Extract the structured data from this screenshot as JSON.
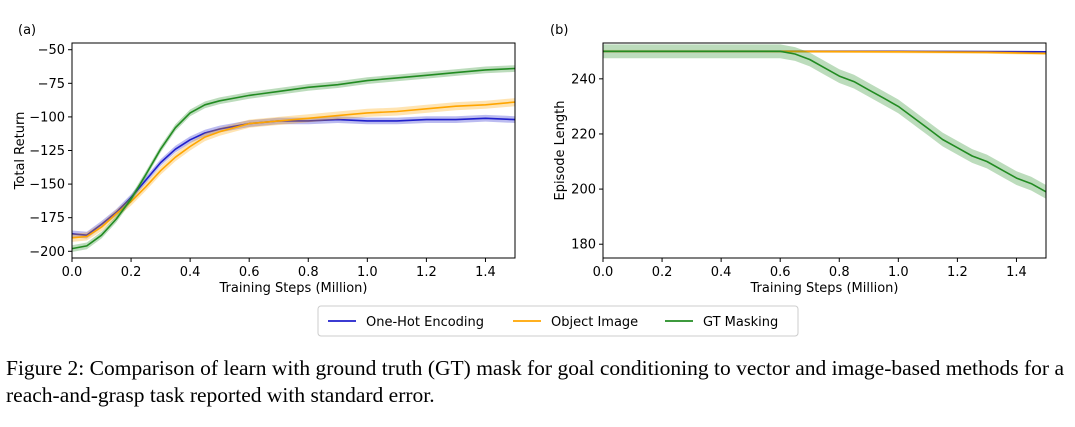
{
  "chart_data": [
    {
      "panel_label": "(a)",
      "type": "line",
      "xlabel": "Training Steps (Million)",
      "ylabel": "Total Return",
      "xlim": [
        0,
        1.5
      ],
      "ylim": [
        -205,
        -45
      ],
      "xticks": [
        0.0,
        0.2,
        0.4,
        0.6,
        0.8,
        1.0,
        1.2,
        1.4
      ],
      "xtick_labels": [
        "0.0",
        "0.2",
        "0.4",
        "0.6",
        "0.8",
        "1.0",
        "1.2",
        "1.4"
      ],
      "yticks": [
        -200,
        -175,
        -150,
        -125,
        -100,
        -75,
        -50
      ],
      "ytick_labels": [
        "−200",
        "−175",
        "−150",
        "−125",
        "−100",
        "−75",
        "−50"
      ],
      "series": [
        {
          "name": "One-Hot Encoding",
          "color": "#1f1fcc",
          "band": 2.5,
          "x": [
            0,
            0.05,
            0.1,
            0.15,
            0.2,
            0.25,
            0.3,
            0.35,
            0.4,
            0.45,
            0.5,
            0.55,
            0.6,
            0.7,
            0.8,
            0.9,
            1.0,
            1.1,
            1.2,
            1.3,
            1.4,
            1.5
          ],
          "y": [
            -187,
            -188,
            -180,
            -171,
            -160,
            -147,
            -134,
            -124,
            -117,
            -112,
            -109,
            -107,
            -105,
            -103,
            -103,
            -102,
            -103,
            -103,
            -102,
            -102,
            -101,
            -102
          ]
        },
        {
          "name": "Object Image",
          "color": "#ffa500",
          "band": 3,
          "x": [
            0,
            0.05,
            0.1,
            0.15,
            0.2,
            0.25,
            0.3,
            0.35,
            0.4,
            0.45,
            0.5,
            0.55,
            0.6,
            0.7,
            0.8,
            0.9,
            1.0,
            1.1,
            1.2,
            1.3,
            1.4,
            1.5
          ],
          "y": [
            -190,
            -189,
            -182,
            -172,
            -163,
            -152,
            -140,
            -130,
            -122,
            -115,
            -111,
            -108,
            -105,
            -103,
            -101,
            -99,
            -97,
            -96,
            -94,
            -92,
            -91,
            -89
          ]
        },
        {
          "name": "GT Masking",
          "color": "#228b22",
          "band": 2.5,
          "x": [
            0,
            0.05,
            0.1,
            0.15,
            0.2,
            0.25,
            0.3,
            0.35,
            0.4,
            0.45,
            0.5,
            0.55,
            0.6,
            0.7,
            0.8,
            0.9,
            1.0,
            1.1,
            1.2,
            1.3,
            1.4,
            1.5
          ],
          "y": [
            -198,
            -196,
            -188,
            -176,
            -161,
            -143,
            -124,
            -108,
            -97,
            -91,
            -88,
            -86,
            -84,
            -81,
            -78,
            -76,
            -73,
            -71,
            -69,
            -67,
            -65,
            -64
          ]
        }
      ]
    },
    {
      "panel_label": "(b)",
      "type": "line",
      "xlabel": "Training Steps (Million)",
      "ylabel": "Episode Length",
      "xlim": [
        0,
        1.5
      ],
      "ylim": [
        175,
        253
      ],
      "xticks": [
        0.0,
        0.2,
        0.4,
        0.6,
        0.8,
        1.0,
        1.2,
        1.4
      ],
      "xtick_labels": [
        "0.0",
        "0.2",
        "0.4",
        "0.6",
        "0.8",
        "1.0",
        "1.2",
        "1.4"
      ],
      "yticks": [
        180,
        200,
        220,
        240
      ],
      "ytick_labels": [
        "180",
        "200",
        "220",
        "240"
      ],
      "series": [
        {
          "name": "One-Hot Encoding",
          "color": "#1f1fcc",
          "band": 0.3,
          "x": [
            0,
            0.5,
            1.0,
            1.5
          ],
          "y": [
            250,
            250,
            250,
            249.8
          ]
        },
        {
          "name": "Object Image",
          "color": "#ffa500",
          "band": 0.5,
          "x": [
            0,
            0.5,
            1.0,
            1.3,
            1.5
          ],
          "y": [
            250,
            250,
            249.8,
            249.6,
            249.2
          ]
        },
        {
          "name": "GT Masking",
          "color": "#228b22",
          "band": 2.5,
          "x": [
            0,
            0.5,
            0.6,
            0.65,
            0.7,
            0.75,
            0.8,
            0.85,
            0.9,
            0.95,
            1.0,
            1.05,
            1.1,
            1.15,
            1.2,
            1.25,
            1.3,
            1.35,
            1.4,
            1.45,
            1.5
          ],
          "y": [
            250,
            250,
            250,
            249,
            247,
            244,
            241,
            239,
            236,
            233,
            230,
            226,
            222,
            218,
            215,
            212,
            210,
            207,
            204,
            202,
            199
          ]
        }
      ]
    }
  ],
  "legend": {
    "items": [
      {
        "label": "One-Hot Encoding",
        "color": "#1f1fcc"
      },
      {
        "label": "Object Image",
        "color": "#ffa500"
      },
      {
        "label": "GT Masking",
        "color": "#228b22"
      }
    ]
  },
  "caption": {
    "text": "Figure 2: Comparison of learn with ground truth (GT) mask for goal conditioning to vector and image-based methods for a reach-and-grasp task reported with standard error."
  }
}
